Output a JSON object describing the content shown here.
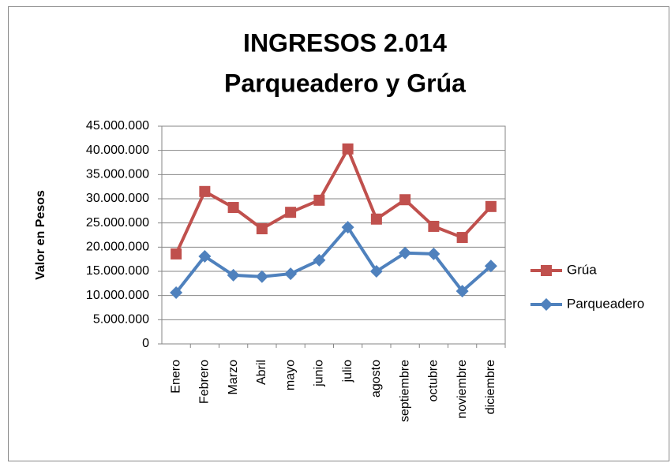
{
  "chart_data": {
    "type": "line",
    "title": "INGRESOS 2.014",
    "subtitle": "Parqueadero y Grúa",
    "y_label": "Valor en Pesos",
    "categories": [
      "Enero",
      "Febrero",
      "Marzo",
      "Abril",
      "mayo",
      "junio",
      "julio",
      "agosto",
      "septiembre",
      "octubre",
      "noviembre",
      "diciembre"
    ],
    "series": [
      {
        "name": "Grúa",
        "color": "#c0504d",
        "marker": "square",
        "values": [
          18600000,
          31500000,
          28200000,
          23800000,
          27200000,
          29700000,
          40300000,
          25800000,
          29800000,
          24300000,
          22000000,
          28400000
        ]
      },
      {
        "name": "Parqueadero",
        "color": "#4f81bd",
        "marker": "diamond",
        "values": [
          10600000,
          18100000,
          14200000,
          13900000,
          14500000,
          17300000,
          24100000,
          15000000,
          18800000,
          18600000,
          10900000,
          16100000
        ]
      }
    ],
    "ylim": [
      0,
      45000000
    ],
    "yticks": [
      0,
      {
        "value": 5000000,
        "label": "5.000.000"
      },
      {
        "value": 10000000,
        "label": "10.000.000"
      },
      {
        "value": 15000000,
        "label": "15.000.000"
      },
      {
        "value": 20000000,
        "label": "20.000.000"
      },
      {
        "value": 25000000,
        "label": "25.000.000"
      },
      {
        "value": 30000000,
        "label": "30.000.000"
      },
      {
        "value": 35000000,
        "label": "35.000.000"
      },
      {
        "value": 40000000,
        "label": "40.000.000"
      },
      {
        "value": 45000000,
        "label": "45.000.000"
      }
    ],
    "grid": true,
    "legend": "right"
  }
}
